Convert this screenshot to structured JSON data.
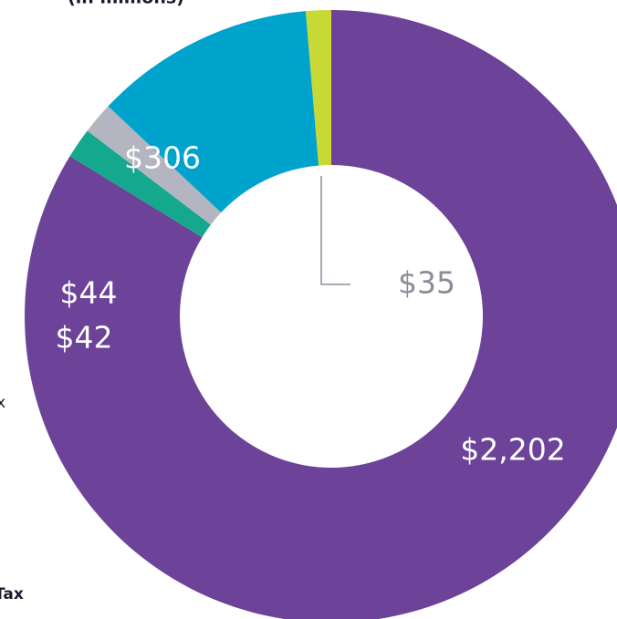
{
  "chart_data": {
    "type": "donut",
    "subtitle": "(in millions)",
    "annotations": [
      "x",
      "Tax"
    ],
    "categories": [
      null,
      null,
      null,
      null,
      null
    ],
    "values": [
      2202,
      42,
      44,
      306,
      35
    ],
    "value_labels": [
      "$2,202",
      "$42",
      "$44",
      "$306",
      "$35"
    ],
    "colors": [
      "#6c4399",
      "#14a88e",
      "#b3b5c0",
      "#00a3cc",
      "#c8d935"
    ]
  }
}
